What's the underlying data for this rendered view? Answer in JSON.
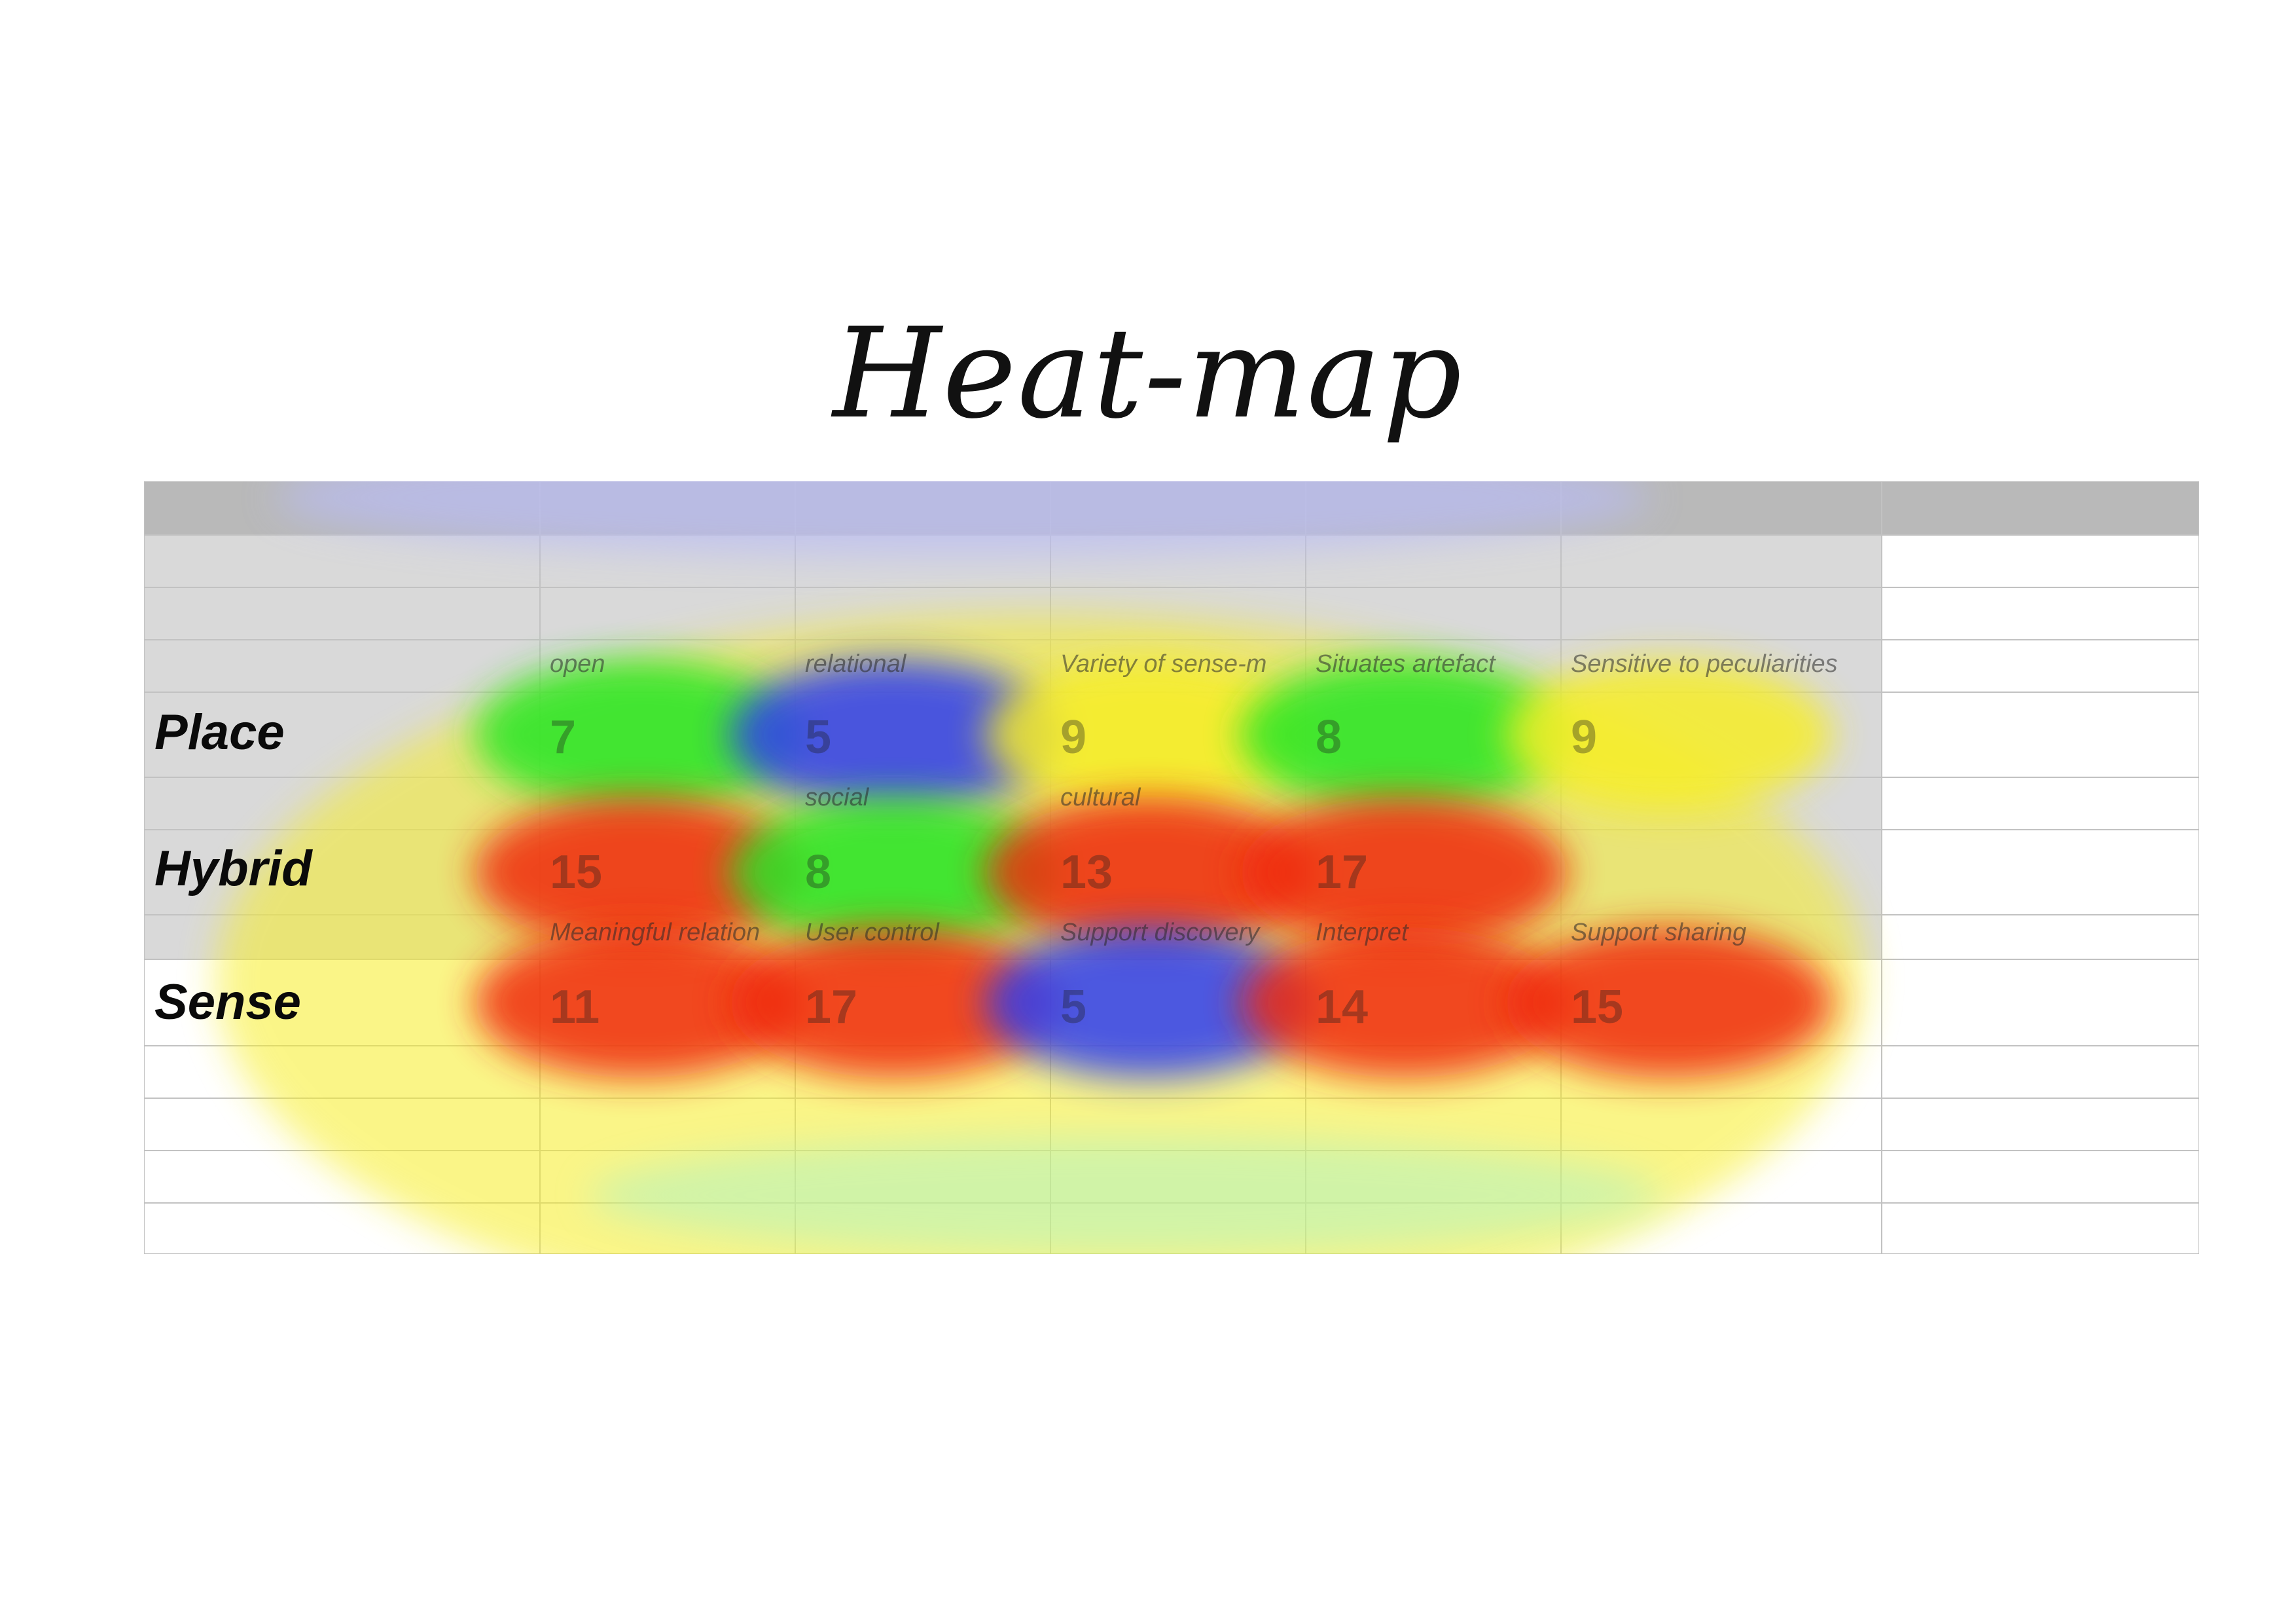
{
  "chart_data": {
    "type": "heatmap",
    "title": "Heat-map",
    "rows": [
      {
        "label": "Place",
        "cells": [
          {
            "label": "open",
            "value": 7
          },
          {
            "label": "relational",
            "value": 5
          },
          {
            "label": "Variety of sense-m",
            "value": 9
          },
          {
            "label": "Situates artefact",
            "value": 8
          },
          {
            "label": "Sensitive to peculiarities",
            "value": 9
          }
        ]
      },
      {
        "label": "Hybrid",
        "cells": [
          {
            "label": "",
            "value": 15
          },
          {
            "label": "social",
            "value": 8
          },
          {
            "label": "cultural",
            "value": 13
          },
          {
            "label": "",
            "value": 17
          },
          {
            "label": "",
            "value": null
          }
        ]
      },
      {
        "label": "Sense",
        "cells": [
          {
            "label": "Meaningful relation",
            "value": 11
          },
          {
            "label": "User control",
            "value": 17
          },
          {
            "label": "Support discovery",
            "value": 5
          },
          {
            "label": "Interpret",
            "value": 14
          },
          {
            "label": "Support sharing",
            "value": 15
          }
        ]
      }
    ],
    "color_scale": [
      "#2e3cf0",
      "#25e626",
      "#f7ee25",
      "#f02a10"
    ],
    "legend": "none",
    "grid": true
  }
}
